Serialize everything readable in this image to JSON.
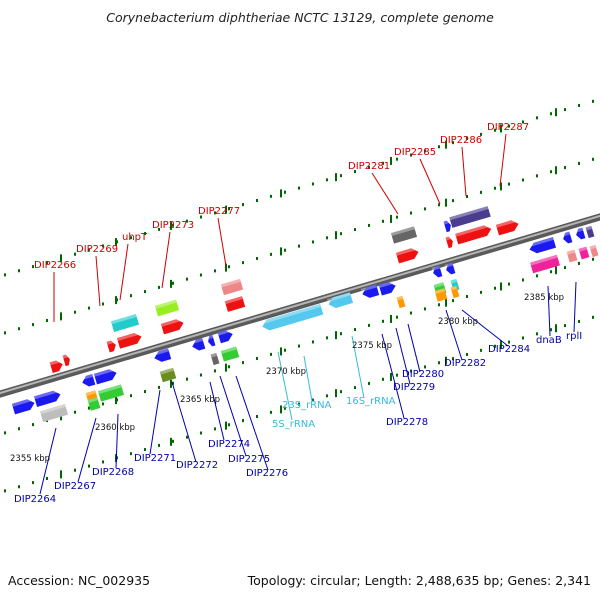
{
  "title": "Corynebacterium diphtheriae NCTC 13129, complete genome",
  "footer": {
    "accession": "Accession: NC_002935",
    "summary": "Topology: circular; Length: 2,488,635 bp; Genes: 2,341"
  },
  "colors": {
    "backbone": "#808080",
    "forward_label": "#cc0000",
    "reverse_label": "#0000aa",
    "rna_label": "#33bbdd",
    "tick": "#006600"
  },
  "scale_labels": [
    "2355 kbp",
    "2360 kbp",
    "2365 kbp",
    "2370 kbp",
    "2375 kbp",
    "2380 kbp",
    "2385 kbp"
  ],
  "forward_labels": [
    "DIP2266",
    "DIP2269",
    "uhpT",
    "DIP2273",
    "DIP2277",
    "DIP2281",
    "DIP2285",
    "DIP2286",
    "DIP2287"
  ],
  "reverse_labels": [
    "DIP2264",
    "DIP2267",
    "DIP2268",
    "DIP2271",
    "DIP2272",
    "DIP2274",
    "DIP2275",
    "DIP2276",
    "DIP2278",
    "DIP2279",
    "DIP2280",
    "DIP2282",
    "DIP2284",
    "dnaB",
    "rplI"
  ],
  "rna_labels": [
    "5S_rRNA",
    "23S_rRNA",
    "16S_rRNA"
  ],
  "feature_colors": [
    "blue",
    "red",
    "cyan",
    "green",
    "olive",
    "gray",
    "silver",
    "orange",
    "yellowgreen",
    "pink",
    "magenta",
    "purple",
    "skyblue"
  ]
}
